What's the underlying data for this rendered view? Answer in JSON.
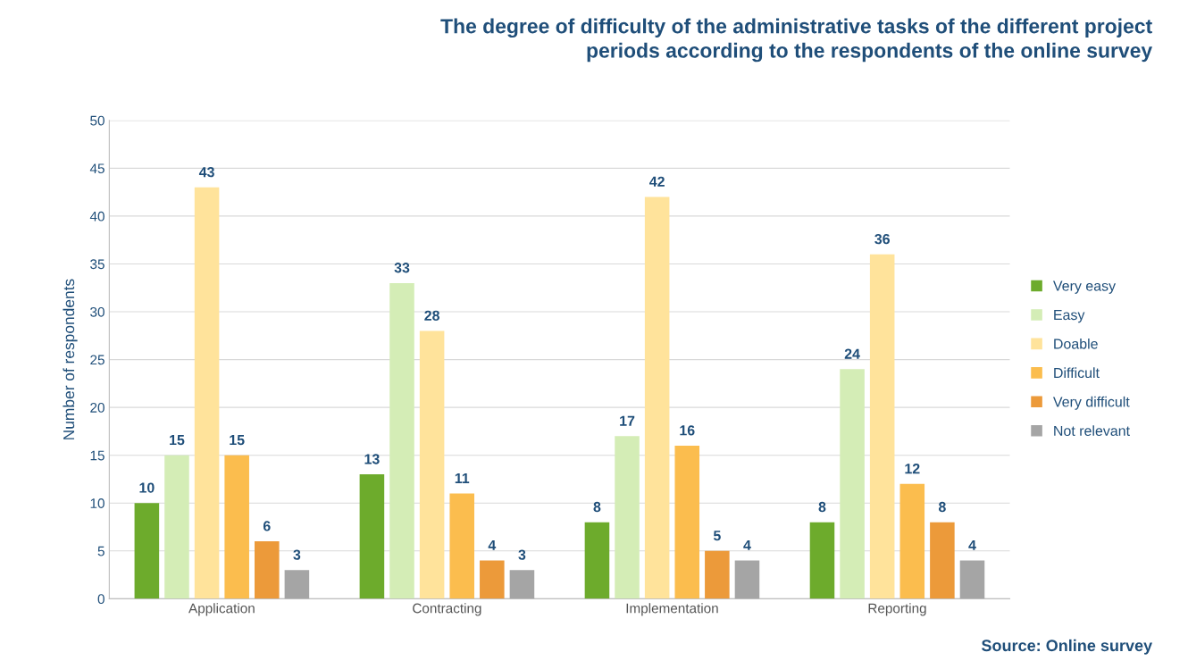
{
  "chart_data": {
    "type": "bar",
    "title": "The degree of difficulty of the administrative tasks of the different project\nperiods according to the respondents of the online survey",
    "ylabel": "Number of respondents",
    "categories": [
      "Application",
      "Contracting",
      "Implementation",
      "Reporting"
    ],
    "series": [
      {
        "name": "Very easy",
        "color": "#6dab2c",
        "values": [
          10,
          13,
          8,
          8
        ]
      },
      {
        "name": "Easy",
        "color": "#d4edb6",
        "values": [
          15,
          33,
          17,
          24
        ]
      },
      {
        "name": "Doable",
        "color": "#ffe39b",
        "values": [
          43,
          28,
          42,
          36
        ]
      },
      {
        "name": "Difficult",
        "color": "#fbbd4e",
        "values": [
          15,
          11,
          16,
          12
        ]
      },
      {
        "name": "Very difficult",
        "color": "#ec9a3a",
        "values": [
          6,
          4,
          5,
          8
        ]
      },
      {
        "name": "Not relevant",
        "color": "#a5a5a5",
        "values": [
          3,
          3,
          4,
          4
        ]
      }
    ],
    "ylim": [
      0,
      50
    ],
    "yticks": [
      0,
      5,
      10,
      15,
      20,
      25,
      30,
      35,
      40,
      45,
      50
    ],
    "grid": "y",
    "legend": "right",
    "data_labels": true,
    "annotations": [
      "Source: Online survey"
    ]
  }
}
